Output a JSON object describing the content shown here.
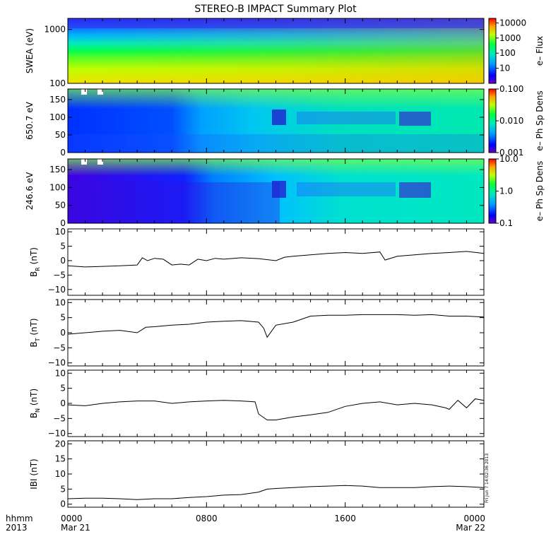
{
  "title": "STEREO-B IMPACT Summary Plot",
  "timestamp": "Fri Jun  7 14:02:36 2013",
  "time_axis": {
    "row1_label": "hhmm",
    "row2_label": "2013",
    "ticks": [
      {
        "hour": 0,
        "top": "0000",
        "bottom": "Mar 21"
      },
      {
        "hour": 8,
        "top": "0800",
        "bottom": ""
      },
      {
        "hour": 16,
        "top": "1600",
        "bottom": ""
      },
      {
        "hour": 24,
        "top": "0000",
        "bottom": "Mar 22"
      }
    ],
    "range_hours": [
      0,
      24
    ]
  },
  "chart_data": [
    {
      "type": "heatmap",
      "ylabel": "SWEA (eV)",
      "yscale": "log",
      "ylim": [
        100,
        1600
      ],
      "yticks": [
        {
          "v": 100,
          "label": "100"
        },
        {
          "v": 1000,
          "label": "1000"
        }
      ],
      "colorbar": {
        "label": "e– Flux",
        "scale": "log",
        "range": [
          1,
          20000
        ],
        "ticks": [
          {
            "v": 10,
            "label": "10"
          },
          {
            "v": 100,
            "label": "100"
          },
          {
            "v": 1000,
            "label": "1000"
          },
          {
            "v": 10000,
            "label": "10000"
          }
        ]
      }
    },
    {
      "type": "heatmap",
      "ylabel": "650.7 eV",
      "yscale": "linear",
      "ylim": [
        0,
        180
      ],
      "yticks": [
        {
          "v": 0,
          "label": "0"
        },
        {
          "v": 50,
          "label": "50"
        },
        {
          "v": 100,
          "label": "100"
        },
        {
          "v": 150,
          "label": "150"
        }
      ],
      "colorbar": {
        "label": "e– Ph Sp Dens",
        "scale": "log",
        "range": [
          0.001,
          0.1
        ],
        "ticks": [
          {
            "v": 0.001,
            "label": "0.001"
          },
          {
            "v": 0.01,
            "label": "0.010"
          },
          {
            "v": 0.1,
            "label": "0.100"
          }
        ]
      }
    },
    {
      "type": "heatmap",
      "ylabel": "246.6 eV",
      "yscale": "linear",
      "ylim": [
        0,
        180
      ],
      "yticks": [
        {
          "v": 0,
          "label": "0"
        },
        {
          "v": 50,
          "label": "50"
        },
        {
          "v": 100,
          "label": "100"
        },
        {
          "v": 150,
          "label": "150"
        }
      ],
      "colorbar": {
        "label": "e– Ph Sp Dens",
        "scale": "log",
        "range": [
          0.1,
          10
        ],
        "ticks": [
          {
            "v": 0.1,
            "label": "0.1"
          },
          {
            "v": 1,
            "label": "1.0"
          },
          {
            "v": 10,
            "label": "10.0"
          }
        ]
      }
    },
    {
      "type": "line",
      "ylabel_main": "B",
      "ylabel_sub": "R",
      "ylabel_unit": " (nT)",
      "ylim": [
        -12,
        11
      ],
      "yticks": [
        {
          "v": -10,
          "label": "−10"
        },
        {
          "v": -5,
          "label": "−5"
        },
        {
          "v": 0,
          "label": "0"
        },
        {
          "v": 5,
          "label": "5"
        },
        {
          "v": 10,
          "label": "10"
        }
      ],
      "x": [
        0,
        1,
        2,
        3,
        4,
        4.3,
        4.6,
        5,
        5.5,
        6,
        6.5,
        7,
        7.5,
        8,
        8.5,
        9,
        10,
        11,
        12,
        12.5,
        13,
        14,
        15,
        16,
        17,
        18,
        18.3,
        19,
        20,
        21,
        22,
        23,
        24
      ],
      "y": [
        -1.8,
        -2.2,
        -2.0,
        -1.8,
        -1.5,
        1.0,
        0.0,
        0.8,
        0.5,
        -1.5,
        -1.2,
        -1.5,
        0.5,
        0.0,
        0.8,
        0.5,
        1.0,
        0.7,
        0.0,
        1.2,
        1.5,
        2.0,
        2.5,
        2.8,
        2.5,
        3.0,
        0.2,
        1.5,
        2.0,
        2.5,
        2.8,
        3.2,
        2.5
      ]
    },
    {
      "type": "line",
      "ylabel_main": "B",
      "ylabel_sub": "T",
      "ylabel_unit": " (nT)",
      "ylim": [
        -11,
        11
      ],
      "yticks": [
        {
          "v": -10,
          "label": "−10"
        },
        {
          "v": -5,
          "label": "−5"
        },
        {
          "v": 0,
          "label": "0"
        },
        {
          "v": 5,
          "label": "5"
        },
        {
          "v": 10,
          "label": "10"
        }
      ],
      "x": [
        0,
        1,
        2,
        3,
        4,
        4.5,
        5,
        6,
        7,
        8,
        9,
        10,
        11,
        11.3,
        11.5,
        12,
        13,
        14,
        15,
        16,
        17,
        18,
        19,
        20,
        21,
        22,
        23,
        24
      ],
      "y": [
        -0.5,
        0.0,
        0.5,
        0.8,
        0.0,
        1.8,
        2.0,
        2.5,
        2.8,
        3.5,
        3.8,
        4.0,
        3.5,
        1.5,
        -1.5,
        2.5,
        3.5,
        5.5,
        5.8,
        5.8,
        6.0,
        6.0,
        6.0,
        5.8,
        6.0,
        5.5,
        5.5,
        5.2
      ]
    },
    {
      "type": "line",
      "ylabel_main": "B",
      "ylabel_sub": "N",
      "ylabel_unit": " (nT)",
      "ylim": [
        -11,
        11
      ],
      "yticks": [
        {
          "v": -10,
          "label": "−10"
        },
        {
          "v": -5,
          "label": "−5"
        },
        {
          "v": 0,
          "label": "0"
        },
        {
          "v": 5,
          "label": "5"
        },
        {
          "v": 10,
          "label": "10"
        }
      ],
      "x": [
        0,
        1,
        2,
        3,
        4,
        5,
        6,
        7,
        8,
        9,
        10,
        10.8,
        11,
        11.5,
        12,
        13,
        14,
        15,
        16,
        17,
        18,
        19,
        20,
        21,
        21.8,
        22,
        22.5,
        23,
        23.5,
        24
      ],
      "y": [
        -0.5,
        -0.8,
        0.0,
        0.5,
        0.8,
        0.8,
        0.0,
        0.5,
        0.8,
        1.0,
        0.8,
        0.5,
        -3.5,
        -5.5,
        -5.5,
        -4.5,
        -3.8,
        -3.0,
        -1.0,
        0.0,
        0.5,
        -0.5,
        0.0,
        -0.5,
        -1.5,
        -2.0,
        1.0,
        -1.5,
        1.5,
        1.0
      ]
    },
    {
      "type": "line",
      "ylabel_main": "IBI",
      "ylabel_sub": "",
      "ylabel_unit": " (nT)",
      "ylim": [
        -1,
        21
      ],
      "yticks": [
        {
          "v": 0,
          "label": "0"
        },
        {
          "v": 5,
          "label": "5"
        },
        {
          "v": 10,
          "label": "10"
        },
        {
          "v": 15,
          "label": "15"
        },
        {
          "v": 20,
          "label": "20"
        }
      ],
      "x": [
        0,
        1,
        2,
        3,
        4,
        5,
        6,
        7,
        8,
        9,
        10,
        11,
        11.5,
        12,
        13,
        14,
        15,
        16,
        17,
        18,
        19,
        20,
        21,
        22,
        23,
        24
      ],
      "y": [
        1.8,
        2.0,
        2.0,
        1.8,
        1.5,
        1.8,
        1.8,
        2.2,
        2.5,
        3.0,
        3.2,
        4.0,
        5.0,
        5.2,
        5.5,
        5.8,
        6.0,
        6.2,
        6.0,
        5.5,
        5.5,
        5.5,
        5.8,
        6.0,
        5.8,
        5.5
      ]
    }
  ]
}
